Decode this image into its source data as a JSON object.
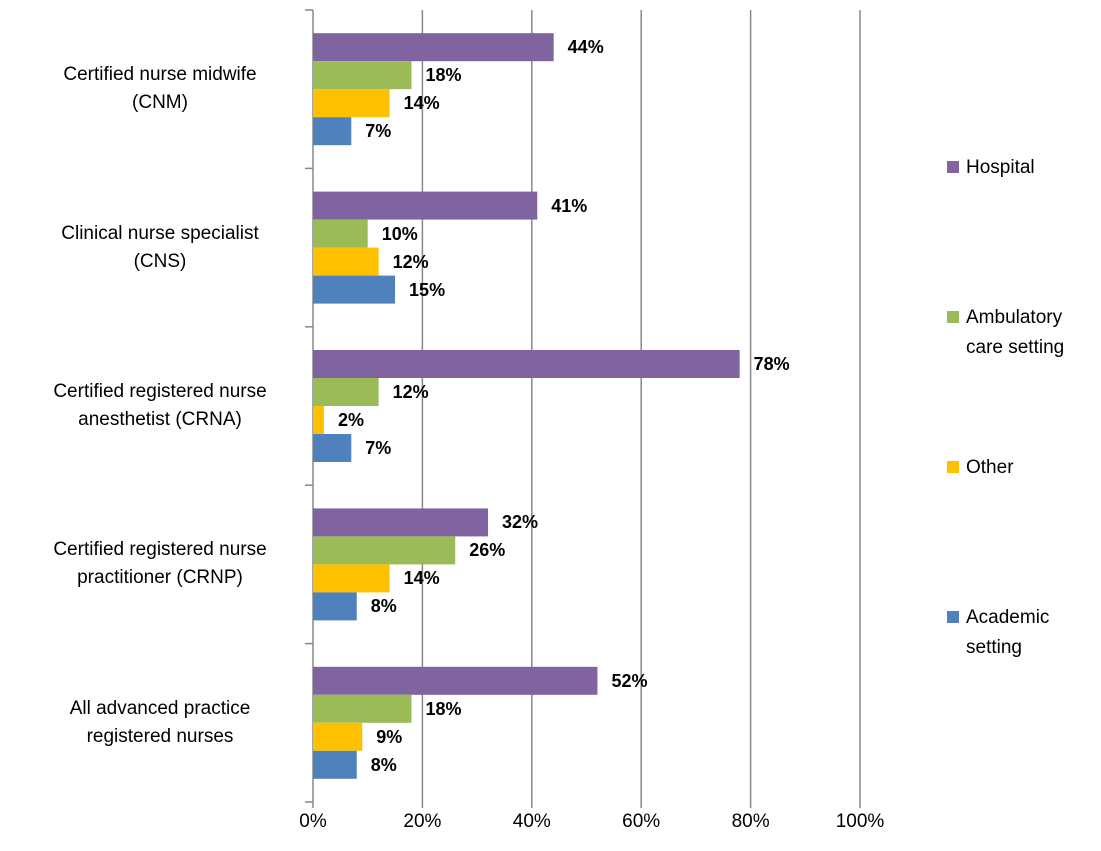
{
  "chart_data": {
    "type": "hbar",
    "categories": [
      "Certified nurse midwife\n(CNM)",
      "Clinical nurse specialist\n(CNS)",
      "Certified registered nurse\nanesthetist (CRNA)",
      "Certified registered nurse\npractitioner (CRNP)",
      "All advanced practice\nregistered nurses"
    ],
    "series": [
      {
        "name": "Hospital",
        "color": "#8064a2",
        "values": [
          44,
          41,
          78,
          32,
          52
        ],
        "value_labels": [
          "44%",
          "41%",
          "78%",
          "32%",
          "52%"
        ]
      },
      {
        "name": "Ambulatory care setting",
        "color": "#9bbb59",
        "values": [
          18,
          10,
          12,
          26,
          18
        ],
        "value_labels": [
          "18%",
          "10%",
          "12%",
          "26%",
          "18%"
        ]
      },
      {
        "name": "Other",
        "color": "#ffc000",
        "values": [
          14,
          12,
          2,
          14,
          9
        ],
        "value_labels": [
          "14%",
          "12%",
          "2%",
          "14%",
          "9%"
        ]
      },
      {
        "name": "Academic setting",
        "color": "#4f81bd",
        "values": [
          7,
          15,
          7,
          8,
          8
        ],
        "value_labels": [
          "7%",
          "15%",
          "7%",
          "8%",
          "8%"
        ]
      }
    ],
    "xlim": [
      0,
      100
    ],
    "xticks": [
      {
        "value": 0,
        "label": "0%"
      },
      {
        "value": 20,
        "label": "20%"
      },
      {
        "value": 40,
        "label": "40%"
      },
      {
        "value": 60,
        "label": "60%"
      },
      {
        "value": 80,
        "label": "80%"
      },
      {
        "value": 100,
        "label": "100%"
      }
    ],
    "grid": true,
    "legend": "right"
  }
}
